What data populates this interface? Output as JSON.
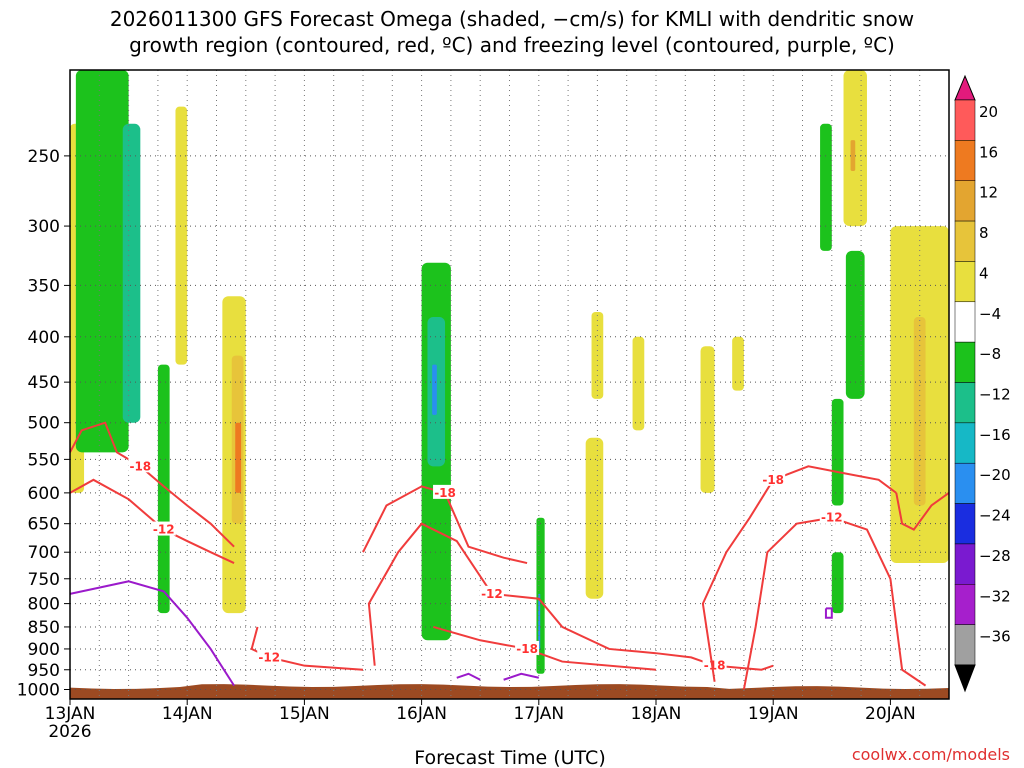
{
  "chart_data": {
    "type": "heatmap",
    "title_line1": "2026011300 GFS Forecast Omega (shaded, −cm/s) for KMLI with dendritic snow",
    "title_line2": "growth region (contoured, red, ºC) and freezing level (contoured, purple, ºC)",
    "xlabel": "Forecast Time (UTC)",
    "x_ticks": [
      {
        "label": "13JAN",
        "sub": "2026",
        "day": 0
      },
      {
        "label": "14JAN",
        "sub": "",
        "day": 1
      },
      {
        "label": "15JAN",
        "sub": "",
        "day": 2
      },
      {
        "label": "16JAN",
        "sub": "",
        "day": 3
      },
      {
        "label": "17JAN",
        "sub": "",
        "day": 4
      },
      {
        "label": "18JAN",
        "sub": "",
        "day": 5
      },
      {
        "label": "19JAN",
        "sub": "",
        "day": 6
      },
      {
        "label": "20JAN",
        "sub": "",
        "day": 7
      }
    ],
    "xlim": [
      0,
      7.5
    ],
    "y_ticks": [
      250,
      300,
      350,
      400,
      450,
      500,
      550,
      600,
      650,
      700,
      750,
      800,
      850,
      900,
      950,
      1000
    ],
    "ylim": [
      1025,
      200
    ],
    "y_scale": "log",
    "grid": true,
    "colorbar": {
      "labels": [
        "20",
        "16",
        "12",
        "8",
        "4",
        "−4",
        "−8",
        "−12",
        "−16",
        "−20",
        "−24",
        "−28",
        "−32",
        "−36"
      ],
      "colors": [
        "#ff5a5a",
        "#ee7a20",
        "#e3a530",
        "#e7c43a",
        "#e8df3e",
        "#ffffff",
        "#1cc21c",
        "#1cbf8a",
        "#16b8c6",
        "#2a8ff0",
        "#1a2de0",
        "#7a1ad0",
        "#a61fcc",
        "#a0a0a0"
      ],
      "top_color": "#e31a7c",
      "bottom_color": "#000000"
    },
    "shading_regions": [
      {
        "level": 4,
        "t0": 0.0,
        "t1": 0.12,
        "p0": 230,
        "p1": 600
      },
      {
        "level": -8,
        "t0": 0.05,
        "t1": 0.5,
        "p0": 200,
        "p1": 540
      },
      {
        "level": -12,
        "t0": 0.45,
        "t1": 0.6,
        "p0": 230,
        "p1": 500
      },
      {
        "level": -8,
        "t0": 0.75,
        "t1": 0.85,
        "p0": 430,
        "p1": 820
      },
      {
        "level": 4,
        "t0": 0.9,
        "t1": 1.0,
        "p0": 220,
        "p1": 430
      },
      {
        "level": 4,
        "t0": 1.3,
        "t1": 1.5,
        "p0": 360,
        "p1": 820
      },
      {
        "level": 8,
        "t0": 1.38,
        "t1": 1.48,
        "p0": 420,
        "p1": 650
      },
      {
        "level": 16,
        "t0": 1.41,
        "t1": 1.46,
        "p0": 500,
        "p1": 600
      },
      {
        "level": -4,
        "t0": 1.9,
        "t1": 1.95,
        "p0": 320,
        "p1": 380
      },
      {
        "level": -8,
        "t0": 3.0,
        "t1": 3.25,
        "p0": 330,
        "p1": 880
      },
      {
        "level": -12,
        "t0": 3.05,
        "t1": 3.2,
        "p0": 380,
        "p1": 560
      },
      {
        "level": -20,
        "t0": 3.09,
        "t1": 3.13,
        "p0": 430,
        "p1": 490
      },
      {
        "level": -8,
        "t0": 3.98,
        "t1": 4.05,
        "p0": 640,
        "p1": 960
      },
      {
        "level": -20,
        "t0": 3.995,
        "t1": 4.01,
        "p0": 780,
        "p1": 900
      },
      {
        "level": 4,
        "t0": 4.4,
        "t1": 4.55,
        "p0": 520,
        "p1": 790
      },
      {
        "level": 4,
        "t0": 4.45,
        "t1": 4.55,
        "p0": 375,
        "p1": 470
      },
      {
        "level": 4,
        "t0": 4.8,
        "t1": 4.9,
        "p0": 400,
        "p1": 510
      },
      {
        "level": 4,
        "t0": 5.38,
        "t1": 5.5,
        "p0": 410,
        "p1": 600
      },
      {
        "level": 4,
        "t0": 5.65,
        "t1": 5.75,
        "p0": 400,
        "p1": 460
      },
      {
        "level": -8,
        "t0": 6.4,
        "t1": 6.5,
        "p0": 230,
        "p1": 320
      },
      {
        "level": 4,
        "t0": 6.6,
        "t1": 6.8,
        "p0": 200,
        "p1": 300
      },
      {
        "level": 12,
        "t0": 6.66,
        "t1": 6.7,
        "p0": 240,
        "p1": 260
      },
      {
        "level": -8,
        "t0": 6.62,
        "t1": 6.78,
        "p0": 320,
        "p1": 470
      },
      {
        "level": -8,
        "t0": 6.5,
        "t1": 6.6,
        "p0": 470,
        "p1": 620
      },
      {
        "level": -8,
        "t0": 6.5,
        "t1": 6.6,
        "p0": 700,
        "p1": 820
      },
      {
        "level": 4,
        "t0": 7.0,
        "t1": 7.5,
        "p0": 300,
        "p1": 720
      },
      {
        "level": 8,
        "t0": 7.2,
        "t1": 7.3,
        "p0": 380,
        "p1": 620
      }
    ],
    "red_contours": [
      {
        "label": "-18",
        "points": [
          [
            0.0,
            540
          ],
          [
            0.1,
            510
          ],
          [
            0.3,
            500
          ],
          [
            0.4,
            540
          ],
          [
            0.6,
            560
          ],
          [
            0.8,
            590
          ],
          [
            1.0,
            620
          ],
          [
            1.2,
            650
          ],
          [
            1.4,
            690
          ]
        ]
      },
      {
        "label": "-12",
        "points": [
          [
            0.0,
            600
          ],
          [
            0.2,
            580
          ],
          [
            0.5,
            610
          ],
          [
            0.8,
            660
          ],
          [
            1.0,
            680
          ],
          [
            1.2,
            700
          ],
          [
            1.4,
            720
          ]
        ]
      },
      {
        "label": "-12",
        "points": [
          [
            1.6,
            850
          ],
          [
            1.55,
            900
          ],
          [
            1.7,
            920
          ],
          [
            2.0,
            940
          ],
          [
            2.5,
            950
          ]
        ]
      },
      {
        "label": "-18",
        "points": [
          [
            2.5,
            700
          ],
          [
            2.7,
            620
          ],
          [
            3.0,
            590
          ],
          [
            3.2,
            600
          ],
          [
            3.4,
            690
          ],
          [
            3.7,
            710
          ],
          [
            3.9,
            720
          ]
        ]
      },
      {
        "label": "-12",
        "points": [
          [
            2.6,
            940
          ],
          [
            2.55,
            800
          ],
          [
            2.8,
            700
          ],
          [
            3.0,
            650
          ],
          [
            3.3,
            680
          ],
          [
            3.6,
            780
          ],
          [
            4.0,
            790
          ],
          [
            4.2,
            850
          ],
          [
            4.6,
            900
          ],
          [
            5.0,
            910
          ]
        ]
      },
      {
        "label": "-18",
        "points": [
          [
            5.0,
            950
          ],
          [
            4.2,
            930
          ],
          [
            3.9,
            900
          ],
          [
            3.5,
            880
          ],
          [
            3.1,
            850
          ]
        ]
      },
      {
        "label": "-18",
        "points": [
          [
            5.0,
            910
          ],
          [
            5.3,
            920
          ],
          [
            5.5,
            940
          ],
          [
            5.9,
            950
          ],
          [
            6.0,
            940
          ]
        ]
      },
      {
        "label": "-18",
        "points": [
          [
            5.5,
            980
          ],
          [
            5.4,
            800
          ],
          [
            5.6,
            700
          ],
          [
            5.8,
            640
          ],
          [
            6.0,
            580
          ],
          [
            6.3,
            560
          ],
          [
            6.6,
            570
          ],
          [
            6.9,
            580
          ],
          [
            7.05,
            600
          ]
        ]
      },
      {
        "label": "-12",
        "points": [
          [
            5.75,
            1000
          ],
          [
            5.85,
            850
          ],
          [
            5.95,
            700
          ],
          [
            6.2,
            650
          ],
          [
            6.5,
            640
          ],
          [
            6.8,
            660
          ],
          [
            7.0,
            750
          ],
          [
            7.1,
            950
          ],
          [
            7.3,
            990
          ]
        ]
      },
      {
        "label": "",
        "points": [
          [
            7.05,
            600
          ],
          [
            7.1,
            650
          ],
          [
            7.2,
            660
          ],
          [
            7.35,
            620
          ],
          [
            7.5,
            600
          ]
        ]
      }
    ],
    "freezing_contours": [
      {
        "label": "",
        "points": [
          [
            0.0,
            780
          ],
          [
            0.2,
            770
          ],
          [
            0.5,
            755
          ],
          [
            0.8,
            775
          ],
          [
            1.0,
            830
          ],
          [
            1.2,
            900
          ],
          [
            1.4,
            990
          ]
        ]
      },
      {
        "label": "",
        "points": [
          [
            3.3,
            970
          ],
          [
            3.4,
            960
          ],
          [
            3.5,
            975
          ]
        ]
      },
      {
        "label": "",
        "points": [
          [
            3.7,
            975
          ],
          [
            3.85,
            960
          ],
          [
            4.0,
            970
          ]
        ]
      },
      {
        "label": "",
        "points": [
          [
            6.45,
            810
          ],
          [
            6.5,
            810
          ],
          [
            6.5,
            830
          ],
          [
            6.45,
            830
          ],
          [
            6.45,
            810
          ]
        ]
      }
    ],
    "terrain_color": "#9c4a22",
    "credit": "coolwx.com/models"
  }
}
